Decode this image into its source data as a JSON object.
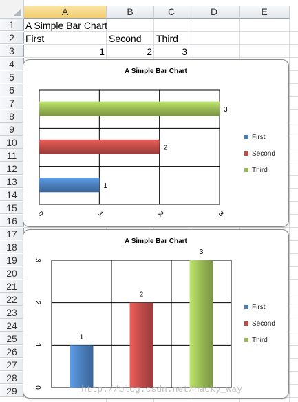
{
  "columns": [
    "A",
    "B",
    "C",
    "D",
    "E"
  ],
  "selected_column": "A",
  "rows": [
    "1",
    "2",
    "3",
    "4",
    "5",
    "6",
    "7",
    "8",
    "9",
    "10",
    "11",
    "12",
    "13",
    "14",
    "15",
    "16",
    "17",
    "18",
    "19",
    "20",
    "21",
    "22",
    "23",
    "24",
    "25",
    "26",
    "27",
    "28",
    "29"
  ],
  "cells": {
    "A1": "A Simple Bar Chart",
    "A2": "First",
    "B2": "Second",
    "C2": "Third",
    "A3": "1",
    "B3": "2",
    "C3": "3"
  },
  "chart_data": [
    {
      "type": "bar",
      "orientation": "horizontal",
      "title": "A Simple Bar Chart",
      "series": [
        {
          "name": "First",
          "values": [
            1
          ],
          "color": "#4a7ebb"
        },
        {
          "name": "Second",
          "values": [
            2
          ],
          "color": "#be4b48"
        },
        {
          "name": "Third",
          "values": [
            3
          ],
          "color": "#98b954"
        }
      ],
      "data_labels": [
        "1",
        "2",
        "3"
      ],
      "xlim": [
        0,
        3
      ],
      "ticks": [
        "0",
        "1",
        "2",
        "3"
      ],
      "grid": true,
      "legend_position": "right"
    },
    {
      "type": "bar",
      "orientation": "vertical",
      "title": "A Simple Bar Chart",
      "series": [
        {
          "name": "First",
          "values": [
            1
          ],
          "color": "#4a7ebb"
        },
        {
          "name": "Second",
          "values": [
            2
          ],
          "color": "#be4b48"
        },
        {
          "name": "Third",
          "values": [
            3
          ],
          "color": "#98b954"
        }
      ],
      "data_labels": [
        "1",
        "2",
        "3"
      ],
      "ylim": [
        0,
        3
      ],
      "ticks": [
        "0",
        "1",
        "2",
        "3"
      ],
      "grid": true,
      "legend_position": "right"
    }
  ],
  "watermark": "http://blog.csdn.net/hacky_way"
}
